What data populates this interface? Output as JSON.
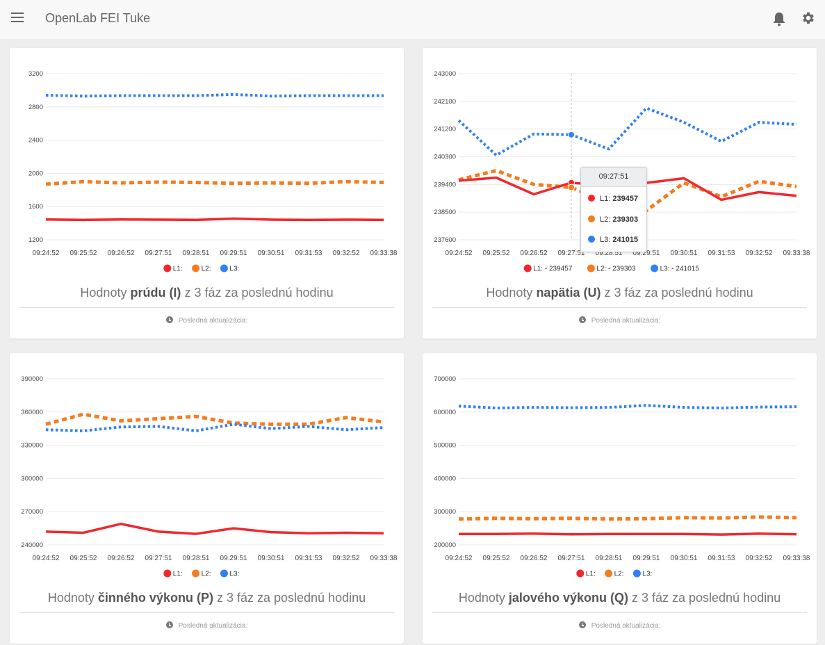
{
  "app": {
    "title": "OpenLab FEI Tuke"
  },
  "icons": {
    "menu": "menu-icon",
    "notifications": "bell-icon",
    "settings": "gear-icon",
    "clock": "clock-icon"
  },
  "colors": {
    "L1": "#f0282d",
    "L2": "#f57c20",
    "L3": "#2f80f5"
  },
  "cards": [
    {
      "id": "current",
      "title_prefix": "Hodnoty ",
      "title_bold": "prúdu (I)",
      "title_suffix": " z 3 fáz za poslednú hodinu",
      "footer": "Posledná aktualizácia:",
      "chart_data": {
        "type": "line",
        "x": [
          "09:24:52",
          "09:25:52",
          "09:26:52",
          "09:27:51",
          "09:28:51",
          "09:29:51",
          "09:30:51",
          "09:31:53",
          "09:32:52",
          "09:33:38"
        ],
        "ylim": [
          1200,
          3200
        ],
        "yticks": [
          "1200",
          "1600",
          "2000",
          "2400",
          "2800",
          "3200"
        ],
        "legend": [
          "L1:",
          "L2:",
          "L3:"
        ],
        "series": [
          {
            "name": "L1",
            "values": [
              1445,
              1440,
              1445,
              1443,
              1440,
              1455,
              1443,
              1440,
              1443,
              1440
            ]
          },
          {
            "name": "L2",
            "values": [
              1870,
              1900,
              1885,
              1895,
              1890,
              1880,
              1885,
              1880,
              1900,
              1890
            ]
          },
          {
            "name": "L3",
            "values": [
              2940,
              2930,
              2935,
              2935,
              2935,
              2950,
              2930,
              2935,
              2935,
              2935
            ]
          }
        ]
      }
    },
    {
      "id": "voltage",
      "title_prefix": "Hodnoty ",
      "title_bold": "napätia (U)",
      "title_suffix": " z 3 fáz za poslednú hodinu",
      "footer": "Posledná aktualizácia:",
      "tooltip": {
        "time": "09:27:51",
        "rows": [
          {
            "label": "L1:",
            "value": "239457"
          },
          {
            "label": "L2:",
            "value": "239303"
          },
          {
            "label": "L3:",
            "value": "241015"
          }
        ]
      },
      "chart_data": {
        "type": "line",
        "x": [
          "09:24:52",
          "09:25:52",
          "09:26:52",
          "09:27:51",
          "09:28:51",
          "09:29:51",
          "09:30:51",
          "09:31:53",
          "09:32:52",
          "09:33:38"
        ],
        "ylim": [
          237600,
          243000
        ],
        "yticks": [
          "237600",
          "238500",
          "239400",
          "240300",
          "241200",
          "242100",
          "243000"
        ],
        "legend": [
          "L1: - 239457",
          "L2: - 239303",
          "L3: - 241015"
        ],
        "series": [
          {
            "name": "L1",
            "values": [
              239520,
              239620,
              239080,
              239457,
              239350,
              239450,
              239600,
              238900,
              239150,
              239030
            ]
          },
          {
            "name": "L2",
            "values": [
              239550,
              239850,
              239400,
              239303,
              238800,
              238550,
              239450,
              239000,
              239500,
              239330
            ]
          },
          {
            "name": "L3",
            "values": [
              241480,
              240350,
              241040,
              241015,
              240550,
              241880,
              241420,
              240800,
              241420,
              241350
            ]
          }
        ]
      }
    },
    {
      "id": "active",
      "title_prefix": "Hodnoty ",
      "title_bold": "činného výkonu (P)",
      "title_suffix": " z 3 fáz za poslednú hodinu",
      "footer": "Posledná aktualizácia:",
      "chart_data": {
        "type": "line",
        "x": [
          "09:24:52",
          "09:25:52",
          "09:26:52",
          "09:27:51",
          "09:28:51",
          "09:29:51",
          "09:30:51",
          "09:31:53",
          "09:32:52",
          "09:33:38"
        ],
        "ylim": [
          240000,
          390000
        ],
        "yticks": [
          "240000",
          "270000",
          "300000",
          "330000",
          "360000",
          "390000"
        ],
        "legend": [
          "L1:",
          "L2:",
          "L3:"
        ],
        "series": [
          {
            "name": "L1",
            "values": [
              252000,
              251000,
              259000,
              252000,
              250000,
              255000,
              251500,
              250500,
              251000,
              250500
            ]
          },
          {
            "name": "L2",
            "values": [
              349000,
              358000,
              352000,
              354000,
              356000,
              350000,
              349000,
              349000,
              355000,
              351000
            ]
          },
          {
            "name": "L3",
            "values": [
              344000,
              343000,
              346500,
              347000,
              343000,
              349000,
              345000,
              347000,
              344000,
              346000
            ]
          }
        ]
      }
    },
    {
      "id": "reactive",
      "title_prefix": "Hodnoty ",
      "title_bold": "jalového výkonu (Q)",
      "title_suffix": " z 3 fáz za poslednú hodinu",
      "footer": "Posledná aktualizácia:",
      "chart_data": {
        "type": "line",
        "x": [
          "09:24:52",
          "09:25:52",
          "09:26:52",
          "09:27:51",
          "09:28:51",
          "09:29:51",
          "09:30:51",
          "09:31:53",
          "09:32:52",
          "09:33:38"
        ],
        "ylim": [
          200000,
          700000
        ],
        "yticks": [
          "200000",
          "300000",
          "400000",
          "500000",
          "600000",
          "700000"
        ],
        "legend": [
          "L1:",
          "L2:",
          "L3:"
        ],
        "series": [
          {
            "name": "L1",
            "values": [
              233000,
              233000,
              234000,
              232000,
              233000,
              233000,
              233000,
              231000,
              234000,
              232000
            ]
          },
          {
            "name": "L2",
            "values": [
              278000,
              280000,
              279000,
              280000,
              278000,
              279000,
              282000,
              281000,
              284000,
              282000
            ]
          },
          {
            "name": "L3",
            "values": [
              618000,
              612000,
              614000,
              613000,
              614000,
              620000,
              614000,
              612000,
              615000,
              616000
            ]
          }
        ]
      }
    }
  ]
}
